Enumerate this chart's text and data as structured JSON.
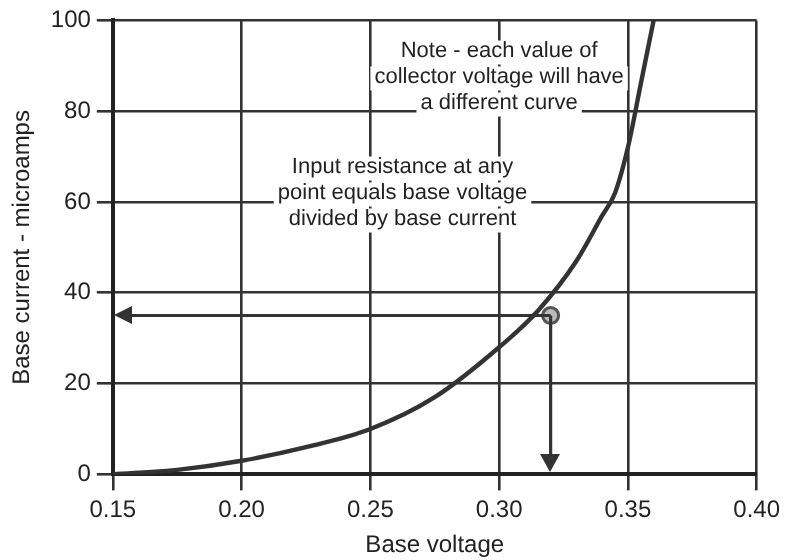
{
  "chart_data": {
    "type": "line",
    "xlabel": "Base voltage",
    "ylabel": "Base current - microamps",
    "xlim": [
      0.15,
      0.4
    ],
    "xticks": [
      {
        "value": 0.15,
        "label": "0.15"
      },
      {
        "value": 0.2,
        "label": "0.20"
      },
      {
        "value": 0.25,
        "label": "0.25"
      },
      {
        "value": 0.3,
        "label": "0.30"
      },
      {
        "value": 0.35,
        "label": "0.35"
      },
      {
        "value": 0.4,
        "label": "0.40"
      }
    ],
    "ylim": [
      0,
      100
    ],
    "yticks": [
      0,
      20,
      40,
      60,
      80,
      100
    ],
    "grid": true,
    "legend": false,
    "series": [
      {
        "type": "line",
        "color": "#333333",
        "marker": "none",
        "x": [
          0.15,
          0.175,
          0.2,
          0.225,
          0.25,
          0.275,
          0.3,
          0.315,
          0.33,
          0.34,
          0.345,
          0.35,
          0.355,
          0.36
        ],
        "values": [
          0,
          1,
          3,
          6,
          10,
          17,
          28,
          36,
          47,
          57,
          62,
          72,
          86,
          100
        ]
      },
      {
        "type": "scatter",
        "color": "#555555",
        "marker": "circle",
        "x": [
          0.32
        ],
        "values": [
          35
        ]
      }
    ],
    "ref_lines": [
      {
        "axis": "x",
        "value": 0.32
      },
      {
        "axis": "y",
        "value": 35
      }
    ],
    "annotations": [
      "Note - each value of collector voltage will have a different curve",
      "Input resistance at any point equals base voltage divided by base current"
    ]
  }
}
